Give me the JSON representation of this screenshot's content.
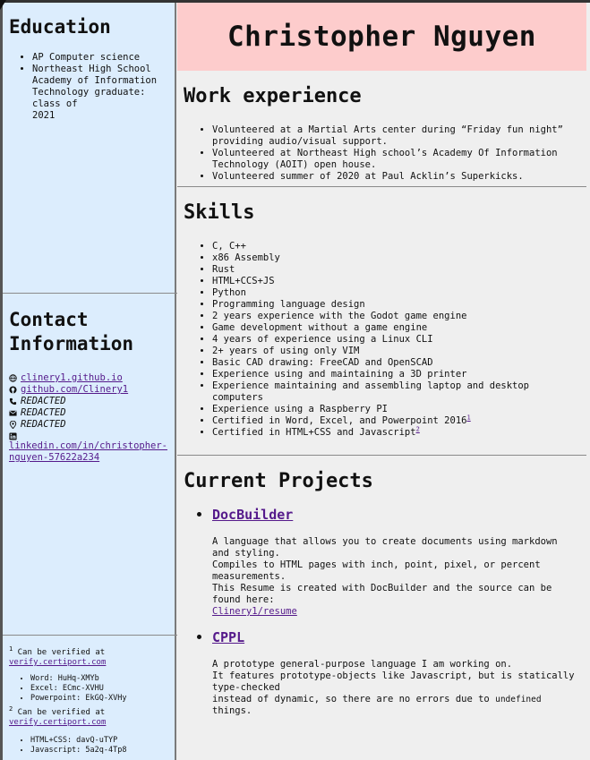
{
  "education": {
    "title": "Education",
    "items": [
      "AP Computer science",
      "Northeast High School Academy of Information Technology graduate: class of\n2021"
    ]
  },
  "contact": {
    "title": "Contact Information",
    "website": "clinery1.github.io",
    "github": "github.com/Clinery1",
    "phone": "REDACTED",
    "email": "REDACTED",
    "address": "REDACTED",
    "linkedin": "linkedin.com/in/christopher-nguyen-57622a234",
    "icons": [
      "globe-icon",
      "github-icon",
      "phone-icon",
      "mail-icon",
      "location-pin-icon",
      "linkedin-icon"
    ]
  },
  "footnotes": {
    "note1": {
      "num": "1",
      "text": "Can be verified at",
      "link": "verify.certiport.com",
      "items": [
        "Word: HuHq-XMYb",
        "Excel: ECmc-XVHU",
        "Powerpoint: EkGQ-XVHy"
      ]
    },
    "note2": {
      "num": "2",
      "text": "Can be verified at",
      "link": "verify.certiport.com",
      "items": [
        "HTML+CSS: davQ-uTYP",
        "Javascript: 5a2q-4Tp8"
      ]
    }
  },
  "name": "Christopher Nguyen",
  "work": {
    "title": "Work experience",
    "items": [
      "Volunteered at a Martial Arts center during “Friday fun night” providing audio/visual support.",
      "Volunteered at Northeast High school’s Academy Of Information Technology (AOIT) open house.",
      "Volunteered summer of 2020 at Paul Acklin’s Superkicks."
    ]
  },
  "skills": {
    "title": "Skills",
    "items": [
      "C, C++",
      "x86 Assembly",
      "Rust",
      "HTML+CCS+JS",
      "Python",
      "Programming language design",
      "2 years experience with the Godot game engine",
      "Game development without a game engine",
      "4 years of experience using a Linux CLI",
      "2+ years of using only VIM",
      "Basic CAD drawing: FreeCAD and OpenSCAD",
      "Experience using and maintaining a 3D printer",
      "Experience maintaining and assembling laptop and desktop computers",
      "Experience using a Raspberry PI"
    ],
    "cert1": "Certified in Word, Excel, and Powerpoint 2016",
    "cert1_sup": "1",
    "cert2": "Certified in HTML+CSS and Javascript",
    "cert2_sup": "2"
  },
  "projects": {
    "title": "Current Projects",
    "p1": {
      "name": "DocBuilder",
      "line1": "A language that allows you to create documents using markdown and styling.",
      "line2": "Compiles to HTML pages with inch, point, pixel, or percent measurements.",
      "line3": "This Resume is created with DocBuilder and the source can be found here:",
      "link": "Clinery1/resume"
    },
    "p2": {
      "name": "CPPL",
      "line1": "A prototype general-purpose language I am working on.",
      "line2": "It features prototype-objects like Javascript, but is statically type-checked",
      "line3a": "instead of dynamic, so there are no errors due to",
      "line3code": "undefined",
      "line3b": "things."
    }
  }
}
